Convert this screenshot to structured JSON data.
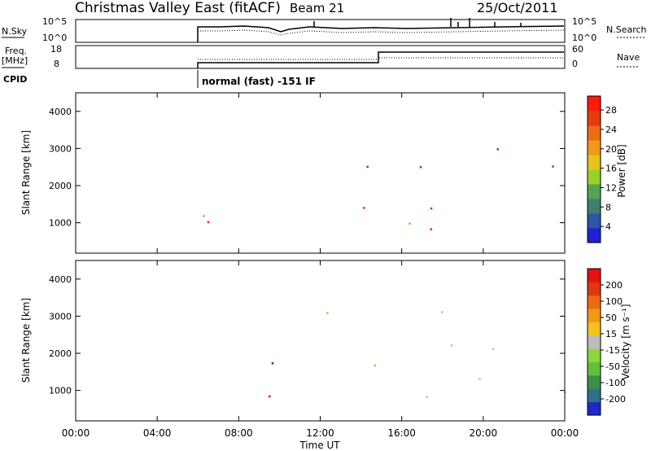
{
  "header": {
    "station": "Christmas Valley East (fitACF)",
    "beam": "Beam 21",
    "date": "25/Oct/2011"
  },
  "strips": {
    "nsky_label": "N.Sky",
    "nsky_ticks": [
      "10^5",
      "10^0"
    ],
    "nsearch_label": "N.Search",
    "nsearch_ticks": [
      "10^5",
      "10^0"
    ],
    "freq_label_1": "Freq.",
    "freq_label_2": "[MHz]",
    "freq_ticks": [
      "18",
      "8"
    ],
    "nave_label": "Nave",
    "nave_ticks": [
      "60",
      "0"
    ],
    "cpid_label": "CPID",
    "cpid_text": "normal (fast) -151 IF"
  },
  "chart_data": [
    {
      "type": "heatmap",
      "title": "Power",
      "ylabel": "Slant Range [km]",
      "xlabel": "",
      "ylim": [
        180,
        4500
      ],
      "xlim": [
        0,
        24
      ],
      "y_ticks": [
        "1000",
        "2000",
        "3000",
        "4000"
      ],
      "x_ticks": [
        "00:00",
        "04:00",
        "08:00",
        "12:00",
        "16:00",
        "20:00",
        "00:00"
      ],
      "colorbar": {
        "label": "Power [dB]",
        "ticks": [
          "4",
          "8",
          "12",
          "16",
          "20",
          "24",
          "28"
        ],
        "colors": [
          "#1f1fd6",
          "#2d55a8",
          "#3f7f6f",
          "#52a552",
          "#9ad02c",
          "#e8c21a",
          "#f29a17",
          "#f06a12",
          "#e53b0f",
          "#ff1a0a"
        ]
      }
    },
    {
      "type": "heatmap",
      "title": "Velocity",
      "ylabel": "Slant Range [km]",
      "xlabel": "Time UT",
      "ylim": [
        180,
        4500
      ],
      "xlim": [
        0,
        24
      ],
      "y_ticks": [
        "1000",
        "2000",
        "3000",
        "4000"
      ],
      "x_ticks": [
        "00:00",
        "04:00",
        "08:00",
        "12:00",
        "16:00",
        "20:00",
        "00:00"
      ],
      "colorbar": {
        "label": "Velocity [m s⁻¹]",
        "ticks": [
          "200",
          "100",
          "50",
          "15",
          "-15",
          "-50",
          "-100",
          "-200"
        ],
        "colors": [
          "#1f28c8",
          "#2f6f8a",
          "#3a8f4c",
          "#62c03a",
          "#8ed63c",
          "#bdbdbd",
          "#f2c31f",
          "#f29a17",
          "#ee6a12",
          "#e1370f",
          "#e61010"
        ]
      }
    }
  ]
}
